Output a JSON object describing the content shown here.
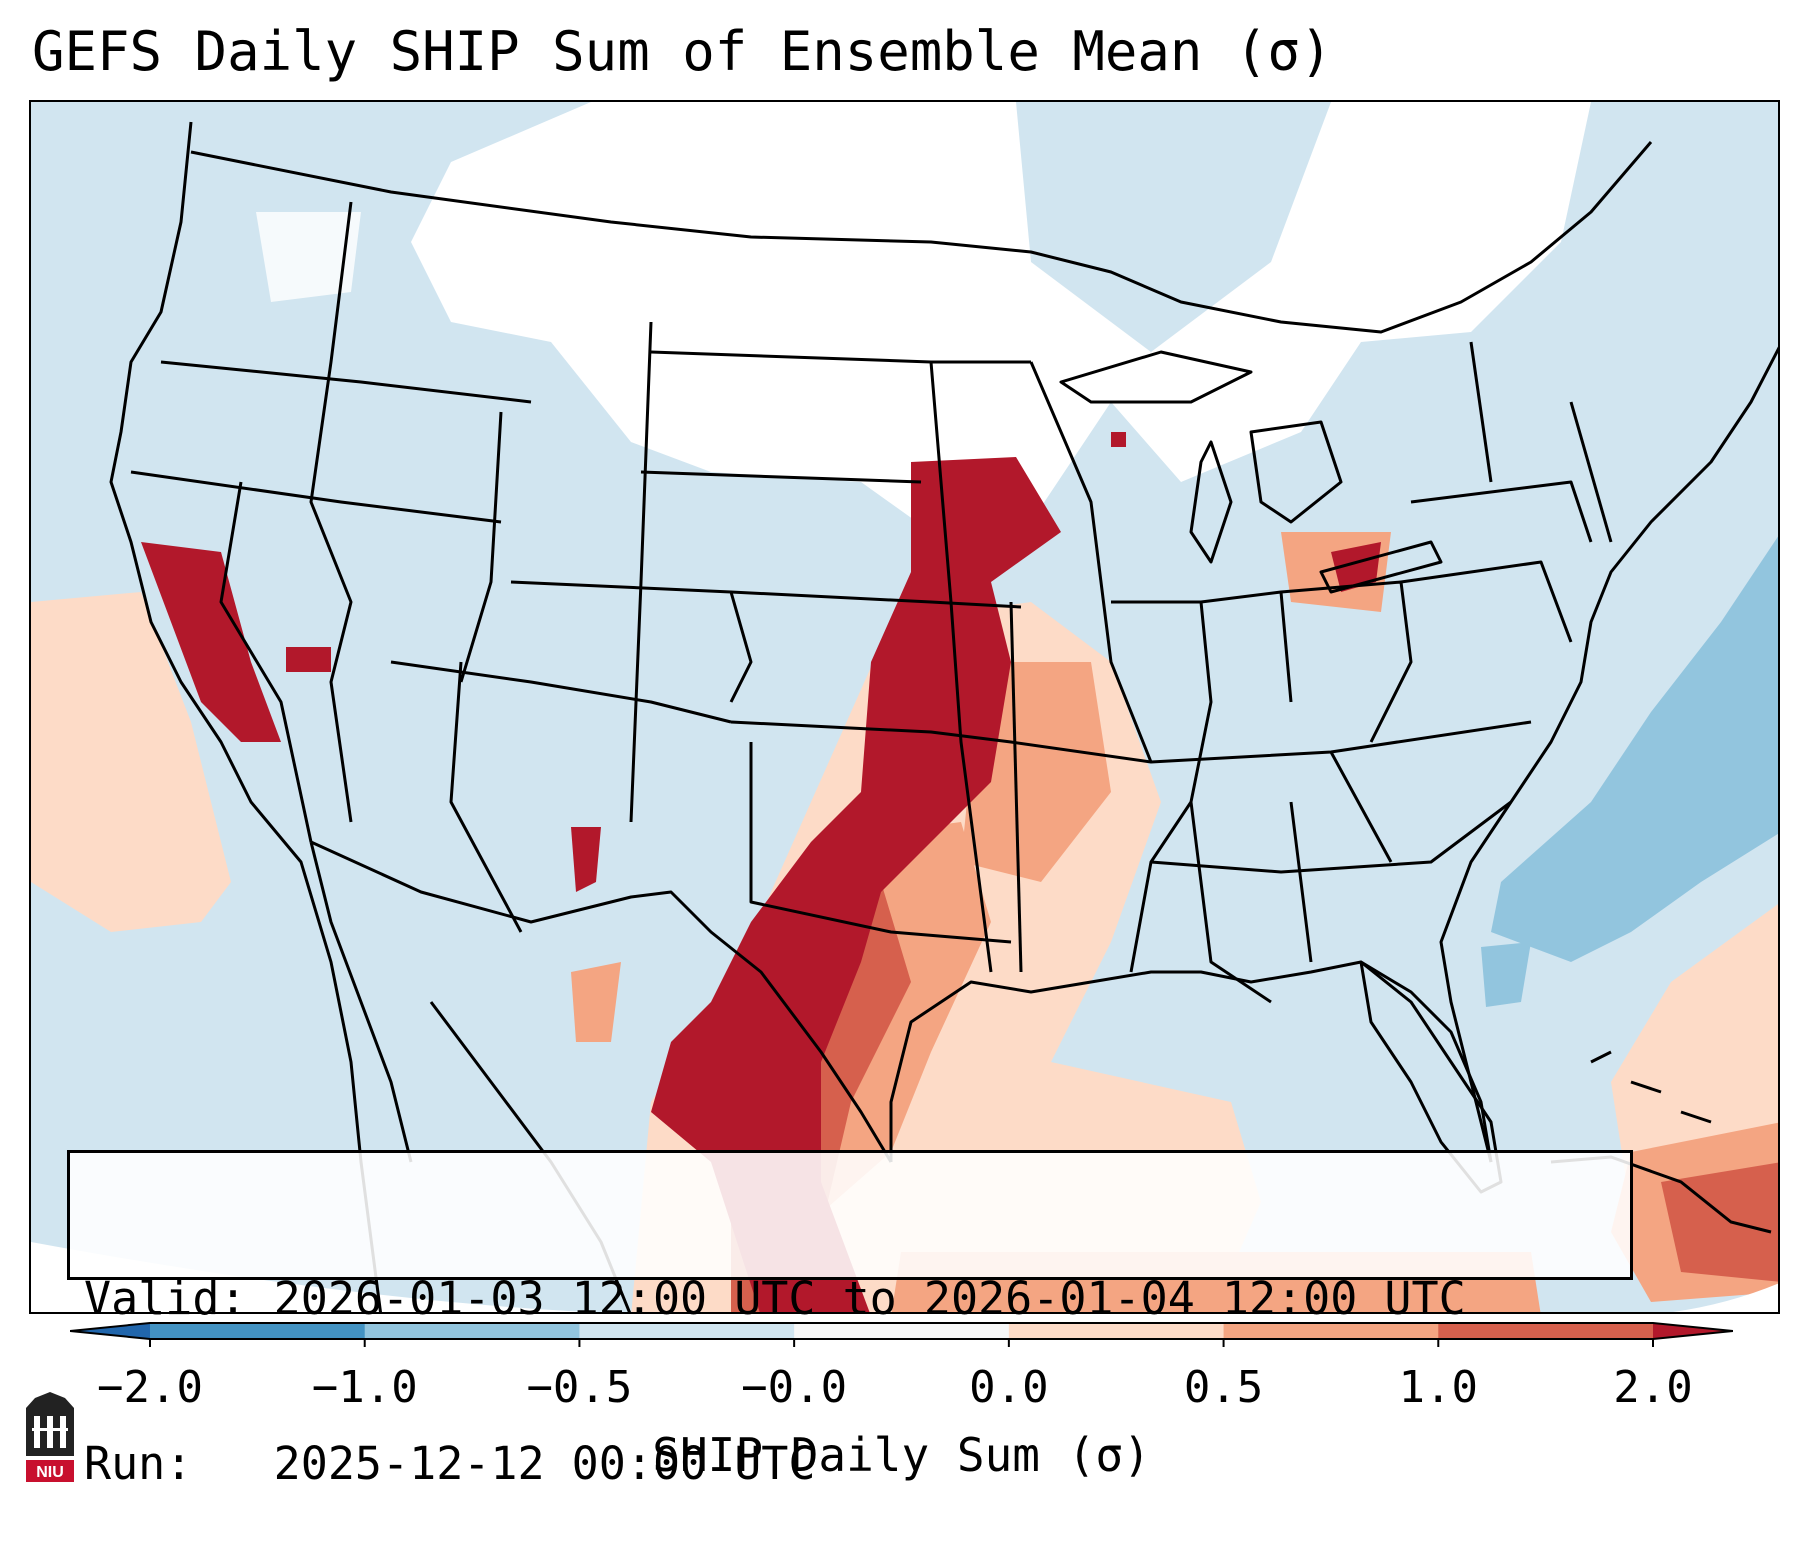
{
  "title": "GEFS Daily SHIP Sum of Ensemble Mean (σ)",
  "info": {
    "valid": "Valid: 2026-01-03 12:00 UTC to 2026-01-04 12:00 UTC",
    "run": "Run:   2025-12-12 00:00 UTC"
  },
  "colorbar": {
    "label": "SHIP Daily Sum (σ)",
    "ticks": [
      "−2.0",
      "−1.0",
      "−0.5",
      "−0.0",
      "0.0",
      "0.5",
      "1.0",
      "2.0"
    ],
    "bins": [
      {
        "color": "#4393c3"
      },
      {
        "color": "#92c5de"
      },
      {
        "color": "#d1e5f0"
      },
      {
        "color": "#f7f7f7"
      },
      {
        "color": "#fddbc7"
      },
      {
        "color": "#f4a582"
      },
      {
        "color": "#d6604d"
      }
    ],
    "extend_low_color": "#2166ac",
    "extend_high_color": "#b2182b"
  },
  "map": {
    "region": "Contiguous United States",
    "field": "SHIP daily sum anomaly",
    "colors": {
      "ocean_background": "#d1e5f0",
      "neutral": "#ffffff",
      "light_blue": "#d1e5f0",
      "blue": "#92c5de",
      "light_red": "#fddbc7",
      "orange": "#f4a582",
      "red": "#d6604d",
      "dark_red": "#b2182b"
    }
  },
  "logo": {
    "text": "NIU",
    "color": "#c8102e"
  }
}
